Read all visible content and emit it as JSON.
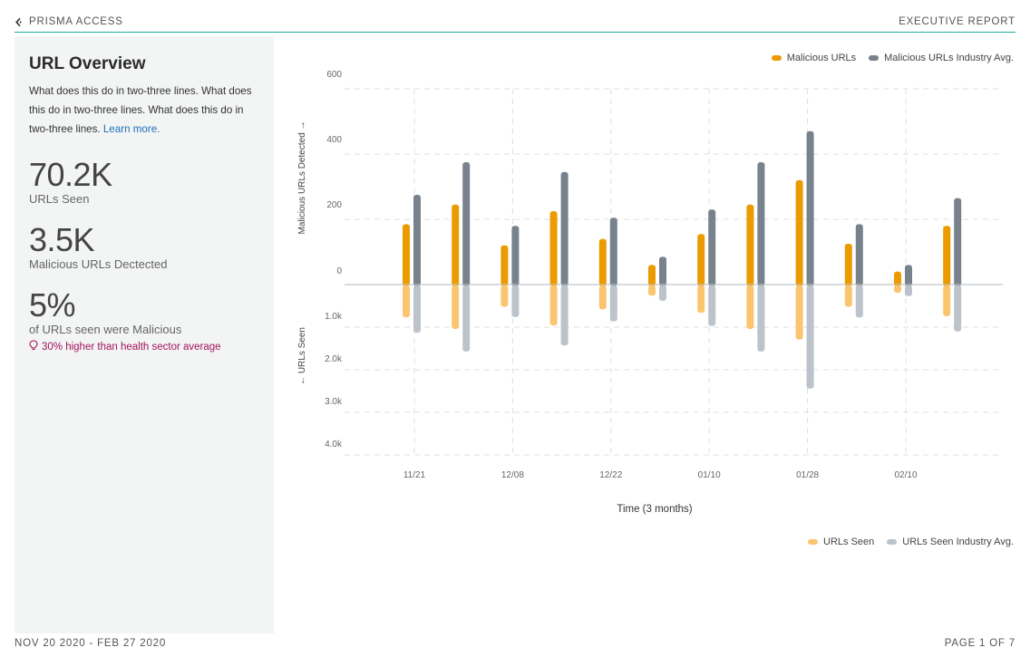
{
  "header": {
    "brand": "PRISMA ACCESS",
    "report": "EXECUTIVE REPORT"
  },
  "panel": {
    "title": "URL Overview",
    "description": "What does this do in two-three lines. What does this do in two-three lines. What does this do in two-three lines.",
    "learn_more": "Learn more.",
    "stats": [
      {
        "value": "70.2K",
        "label": "URLs Seen"
      },
      {
        "value": "3.5K",
        "label": "Malicious URLs Dectected"
      },
      {
        "value": "5%",
        "label": "of URLs seen were Malicious"
      }
    ],
    "insight": "30% higher than health sector average"
  },
  "footer": {
    "date_range": "NOV 20 2020 - FEB 27 2020",
    "page": "PAGE 1 OF 7"
  },
  "colors": {
    "malicious": "#eb9b00",
    "malicious_avg": "#78828c",
    "seen": "#fbc570",
    "seen_avg": "#bcc3cb"
  },
  "chart_data": {
    "type": "bar",
    "xlabel": "Time (3 months)",
    "ylabel_top": "Malicious URLs Detected →",
    "ylabel_bottom": "← URLs Seen",
    "x_ticks": [
      "11/21",
      "12/08",
      "12/22",
      "01/10",
      "01/28",
      "02/10"
    ],
    "top_ticks": [
      "600",
      "400",
      "200",
      "0"
    ],
    "bottom_ticks": [
      "1.0k",
      "2.0k",
      "3.0k",
      "4.0k"
    ],
    "top_ylim": [
      0,
      600
    ],
    "bottom_ylim": [
      0,
      4000
    ],
    "grid": true,
    "legend_top": [
      "Malicious URLs",
      "Malicious URLs Industry Avg."
    ],
    "legend_bottom": [
      "URLs Seen",
      "URLs Seen Industry Avg."
    ],
    "series": [
      {
        "name": "Malicious URLs",
        "values": [
          185,
          245,
          120,
          225,
          140,
          60,
          155,
          245,
          320,
          125,
          40,
          180
        ]
      },
      {
        "name": "Malicious URLs Industry Avg.",
        "values": [
          275,
          375,
          180,
          345,
          205,
          85,
          230,
          375,
          470,
          185,
          60,
          265
        ]
      },
      {
        "name": "URLs Seen",
        "values": [
          750,
          1020,
          500,
          940,
          560,
          240,
          640,
          1020,
          1270,
          500,
          170,
          720
        ]
      },
      {
        "name": "URLs Seen Industry Avg.",
        "values": [
          1110,
          1550,
          740,
          1410,
          840,
          360,
          950,
          1550,
          2420,
          750,
          250,
          1080
        ]
      }
    ]
  }
}
